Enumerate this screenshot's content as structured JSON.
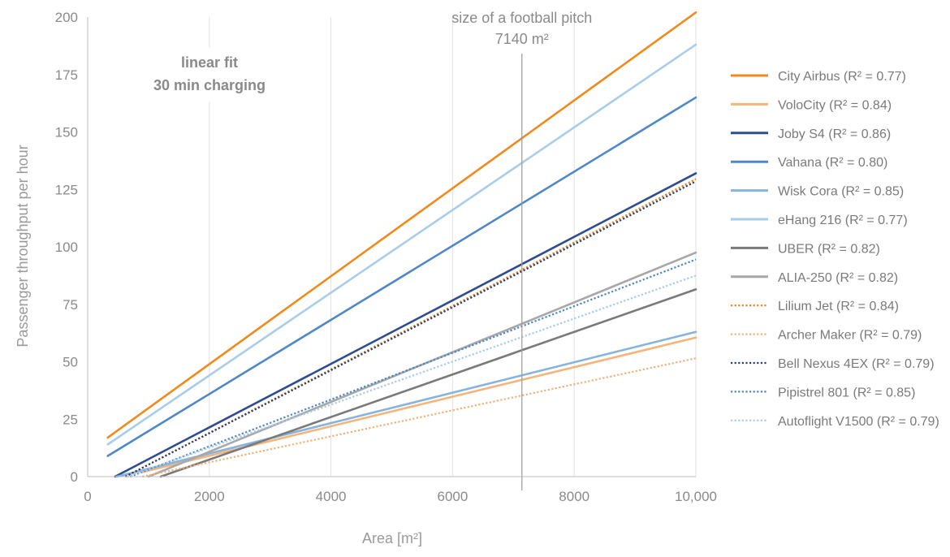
{
  "chart_data": {
    "type": "line",
    "xlabel": "Area [m²]",
    "ylabel": "Passenger throughput per hour",
    "xlim": [
      0,
      10000
    ],
    "ylim": [
      0,
      200
    ],
    "x_ticks": [
      0,
      2000,
      4000,
      6000,
      8000,
      10000
    ],
    "x_tick_labels": [
      "0",
      "2000",
      "4000",
      "6000",
      "8000",
      "10,000"
    ],
    "y_ticks": [
      0,
      25,
      50,
      75,
      100,
      125,
      150,
      175,
      200
    ],
    "y_tick_labels": [
      "0",
      "25",
      "50",
      "75",
      "100",
      "125",
      "150",
      "175",
      "200"
    ],
    "grid": "vertical",
    "legend_position": "right",
    "fit_label_line1": "linear fit",
    "fit_label_line2": "30 min charging",
    "reference_line": {
      "x": 7140,
      "label_line1": "size of a football pitch",
      "label_line2": "7140 m²"
    },
    "series": [
      {
        "name": "City Airbus (R² = 0.77)",
        "color": "#f08a1c",
        "style": "solid",
        "x": [
          330,
          10000
        ],
        "y": [
          17,
          202
        ]
      },
      {
        "name": "VoloCity (R² = 0.84)",
        "color": "#f5b47a",
        "style": "solid",
        "x": [
          900,
          10000
        ],
        "y": [
          2,
          60.5
        ]
      },
      {
        "name": "Joby S4 (R² = 0.86)",
        "color": "#2e4d8f",
        "style": "solid",
        "x": [
          450,
          10000
        ],
        "y": [
          0,
          132
        ]
      },
      {
        "name": "Vahana (R² = 0.80)",
        "color": "#4f88c6",
        "style": "solid",
        "x": [
          330,
          10000
        ],
        "y": [
          9,
          165
        ]
      },
      {
        "name": "Wisk Cora (R² = 0.85)",
        "color": "#86b4dc",
        "style": "solid",
        "x": [
          480,
          10000
        ],
        "y": [
          0,
          63
        ]
      },
      {
        "name": "eHang 216 (R² = 0.77)",
        "color": "#a9cde8",
        "style": "solid",
        "x": [
          330,
          10000
        ],
        "y": [
          14,
          188
        ]
      },
      {
        "name": "UBER (R² = 0.82)",
        "color": "#7a7a7c",
        "style": "solid",
        "x": [
          1200,
          10000
        ],
        "y": [
          0,
          81.5
        ]
      },
      {
        "name": "ALIA-250 (R² = 0.82)",
        "color": "#a8a8aa",
        "style": "solid",
        "x": [
          1000,
          10000
        ],
        "y": [
          0,
          97.5
        ]
      },
      {
        "name": "Lilium Jet (R² = 0.84)",
        "color": "#e8801e",
        "style": "dotted",
        "x": [
          620,
          10000
        ],
        "y": [
          0,
          129.5
        ]
      },
      {
        "name": "Archer Maker (R² = 0.79)",
        "color": "#f2b079",
        "style": "dotted",
        "x": [
          900,
          10000
        ],
        "y": [
          0,
          51.5
        ]
      },
      {
        "name": "Bell Nexus 4EX (R² = 0.79)",
        "color": "#2a3f6a",
        "style": "dotted",
        "x": [
          620,
          10000
        ],
        "y": [
          0,
          128.5
        ]
      },
      {
        "name": "Pipistrel 801 (R² = 0.85)",
        "color": "#4a86c8",
        "style": "dotted",
        "x": [
          700,
          10000
        ],
        "y": [
          0,
          94.5
        ]
      },
      {
        "name": "Autoflight V1500 (R² = 0.79)",
        "color": "#a6cbe8",
        "style": "dotted",
        "x": [
          650,
          10000
        ],
        "y": [
          0,
          87.5
        ]
      }
    ]
  }
}
